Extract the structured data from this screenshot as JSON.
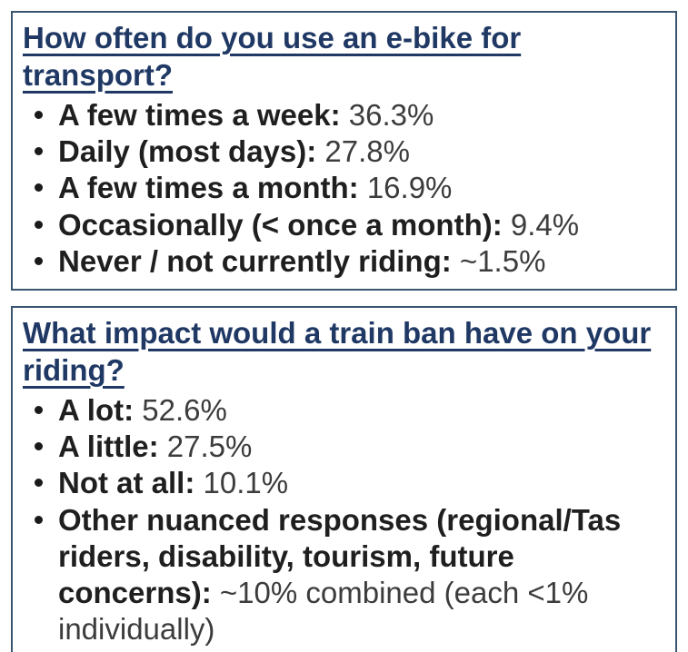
{
  "colors": {
    "heading": "#1f3864",
    "border": "#3a5570",
    "label_text": "#1f1f1f",
    "value_text": "#3c3c3c",
    "background": "#ffffff"
  },
  "panels": [
    {
      "question": "How often do you use an e-bike for transport?",
      "items": [
        {
          "label": "A few times a week:",
          "value": "36.3%"
        },
        {
          "label": "Daily (most days):",
          "value": "27.8%"
        },
        {
          "label": "A few times a month:",
          "value": "16.9%"
        },
        {
          "label": "Occasionally (< once a month):",
          "value": "9.4%"
        },
        {
          "label": "Never / not currently riding:",
          "value": "~1.5%"
        }
      ]
    },
    {
      "question": "What impact would a train ban have on your riding?",
      "items": [
        {
          "label": "A lot:",
          "value": "52.6%"
        },
        {
          "label": "A little:",
          "value": "27.5%"
        },
        {
          "label": "Not at all:",
          "value": "10.1%"
        },
        {
          "label": "Other nuanced responses (regional/Tas riders, disability, tourism, future concerns):",
          "value": "~10% combined (each <1% individually)"
        }
      ]
    }
  ]
}
